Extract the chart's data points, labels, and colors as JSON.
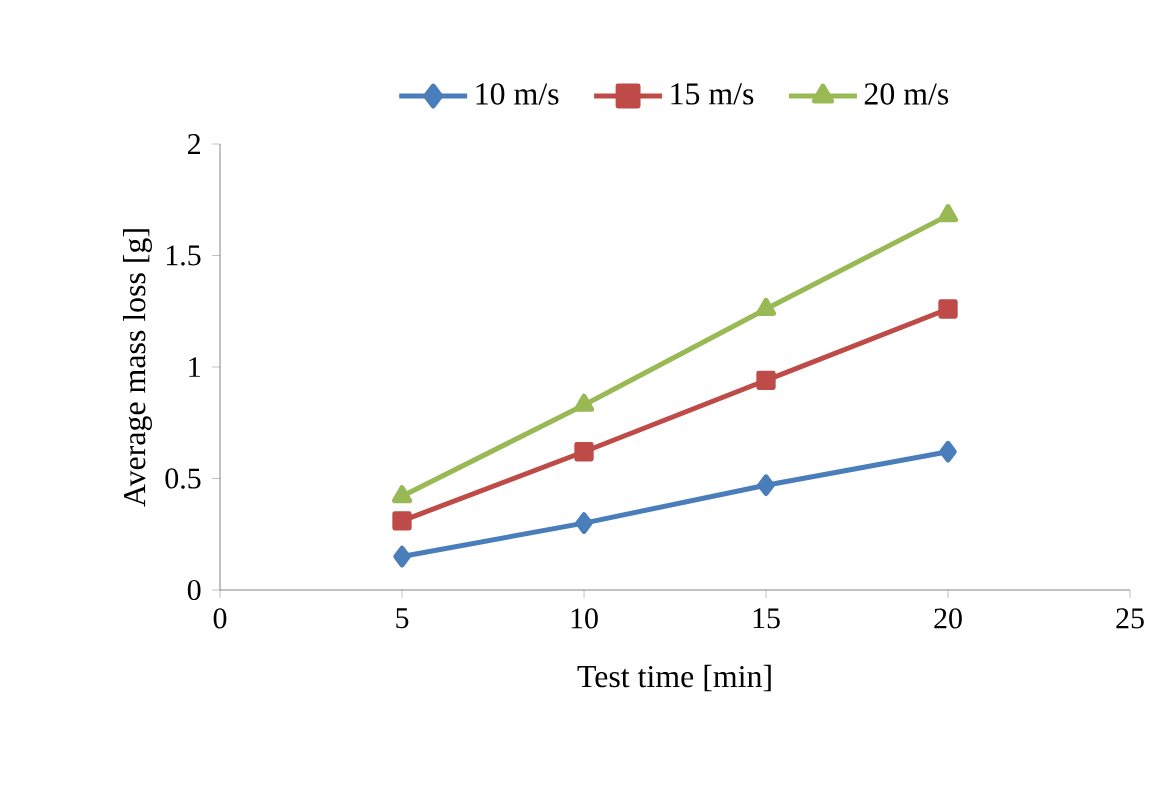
{
  "chart_data": {
    "type": "line",
    "xlabel": "Test time [min]",
    "ylabel": "Average mass loss  [g]",
    "x": [
      5,
      10,
      15,
      20
    ],
    "series": [
      {
        "name": "10 m/s",
        "color": "#4a7ebb",
        "values": [
          0.15,
          0.3,
          0.47,
          0.62
        ],
        "marker": "diamond"
      },
      {
        "name": "15 m/s",
        "color": "#be4b48",
        "values": [
          0.31,
          0.62,
          0.94,
          1.26
        ],
        "marker": "square"
      },
      {
        "name": "20 m/s",
        "color": "#98b954",
        "values": [
          0.42,
          0.83,
          1.26,
          1.68
        ],
        "marker": "triangle"
      }
    ],
    "xlim": [
      0,
      25
    ],
    "xticks": [
      0,
      5,
      10,
      15,
      20,
      25
    ],
    "ylim": [
      0,
      2
    ],
    "yticks": [
      0,
      0.5,
      1,
      1.5,
      2
    ],
    "grid": false,
    "legend": "top",
    "line_style": "solid"
  }
}
